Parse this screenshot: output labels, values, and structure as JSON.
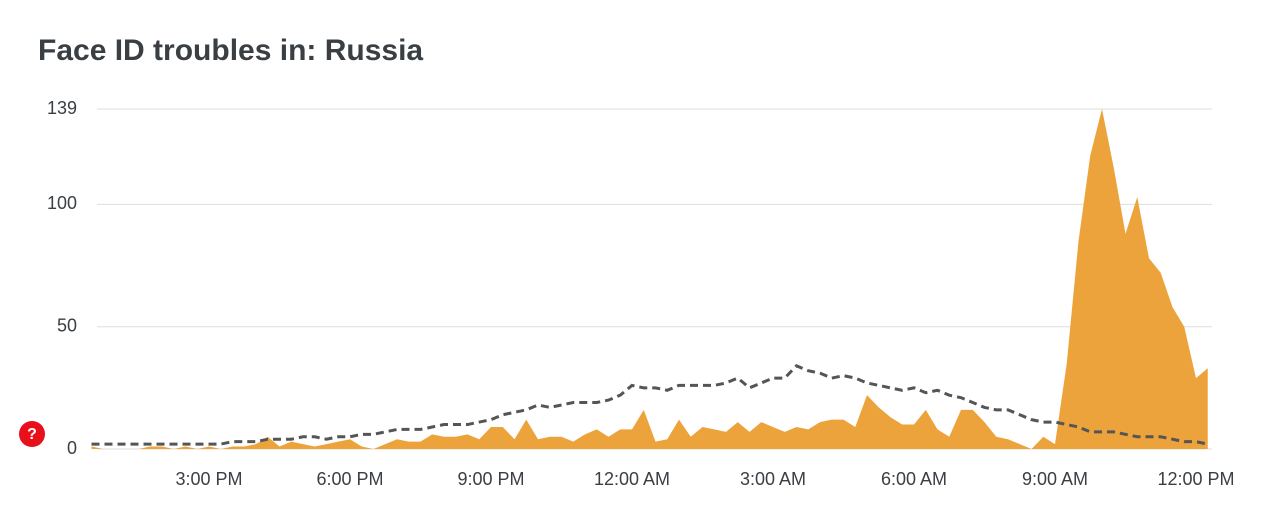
{
  "chart_data": {
    "type": "area",
    "title": "Face ID troubles in: Russia",
    "help_icon": "?",
    "categories": [
      null,
      null,
      null,
      null,
      null,
      null,
      null,
      null,
      null,
      null,
      "3:00 PM",
      null,
      null,
      null,
      null,
      null,
      null,
      null,
      null,
      null,
      null,
      null,
      "6:00 PM",
      null,
      null,
      null,
      null,
      null,
      null,
      null,
      null,
      null,
      null,
      null,
      "9:00 PM",
      null,
      null,
      null,
      null,
      null,
      null,
      null,
      null,
      null,
      null,
      null,
      "12:00 AM",
      null,
      null,
      null,
      null,
      null,
      null,
      null,
      null,
      null,
      null,
      null,
      "3:00 AM",
      null,
      null,
      null,
      null,
      null,
      null,
      null,
      null,
      null,
      null,
      null,
      "6:00 AM",
      null,
      null,
      null,
      null,
      null,
      null,
      null,
      null,
      null,
      null,
      null,
      "9:00 AM",
      null,
      null,
      null,
      null,
      null,
      null,
      null,
      null,
      null,
      null,
      null,
      "12:00 PM",
      null
    ],
    "series": [
      {
        "color": "#eda33b",
        "fill": true,
        "values": [
          1,
          0,
          0,
          0,
          0,
          1,
          1,
          0,
          1,
          0,
          1,
          0,
          1,
          1,
          2,
          5,
          1,
          3,
          2,
          1,
          2,
          3,
          4,
          1,
          0,
          2,
          4,
          3,
          3,
          6,
          5,
          5,
          6,
          4,
          9,
          9,
          4,
          12,
          4,
          5,
          5,
          3,
          6,
          8,
          5,
          8,
          8,
          16,
          3,
          4,
          12,
          5,
          9,
          8,
          7,
          11,
          7,
          11,
          9,
          7,
          9,
          8,
          11,
          12,
          12,
          9,
          22,
          17,
          13,
          10,
          10,
          16,
          8,
          5,
          16,
          16,
          11,
          5,
          4,
          2,
          0,
          5,
          2,
          35,
          85,
          120,
          139,
          115,
          88,
          103,
          78,
          72,
          58,
          50,
          29,
          33
        ]
      },
      {
        "color": "#555555",
        "dashed": true,
        "values": [
          2,
          2,
          2,
          2,
          2,
          2,
          2,
          2,
          2,
          2,
          2,
          2,
          3,
          3,
          3,
          4,
          4,
          4,
          5,
          5,
          4,
          5,
          5,
          6,
          6,
          7,
          8,
          8,
          8,
          9,
          10,
          10,
          10,
          11,
          12,
          14,
          15,
          16,
          18,
          17,
          18,
          19,
          19,
          19,
          20,
          22,
          26,
          25,
          25,
          24,
          26,
          26,
          26,
          26,
          27,
          29,
          25,
          27,
          29,
          29,
          34,
          32,
          31,
          29,
          30,
          29,
          27,
          26,
          25,
          24,
          25,
          23,
          24,
          22,
          21,
          19,
          17,
          16,
          16,
          14,
          12,
          11,
          11,
          10,
          9,
          7,
          7,
          7,
          6,
          5,
          5,
          5,
          4,
          3,
          3,
          2
        ]
      }
    ],
    "ylim": [
      0,
      139
    ],
    "yticks": [
      0,
      50,
      100,
      139
    ],
    "grid": true
  }
}
